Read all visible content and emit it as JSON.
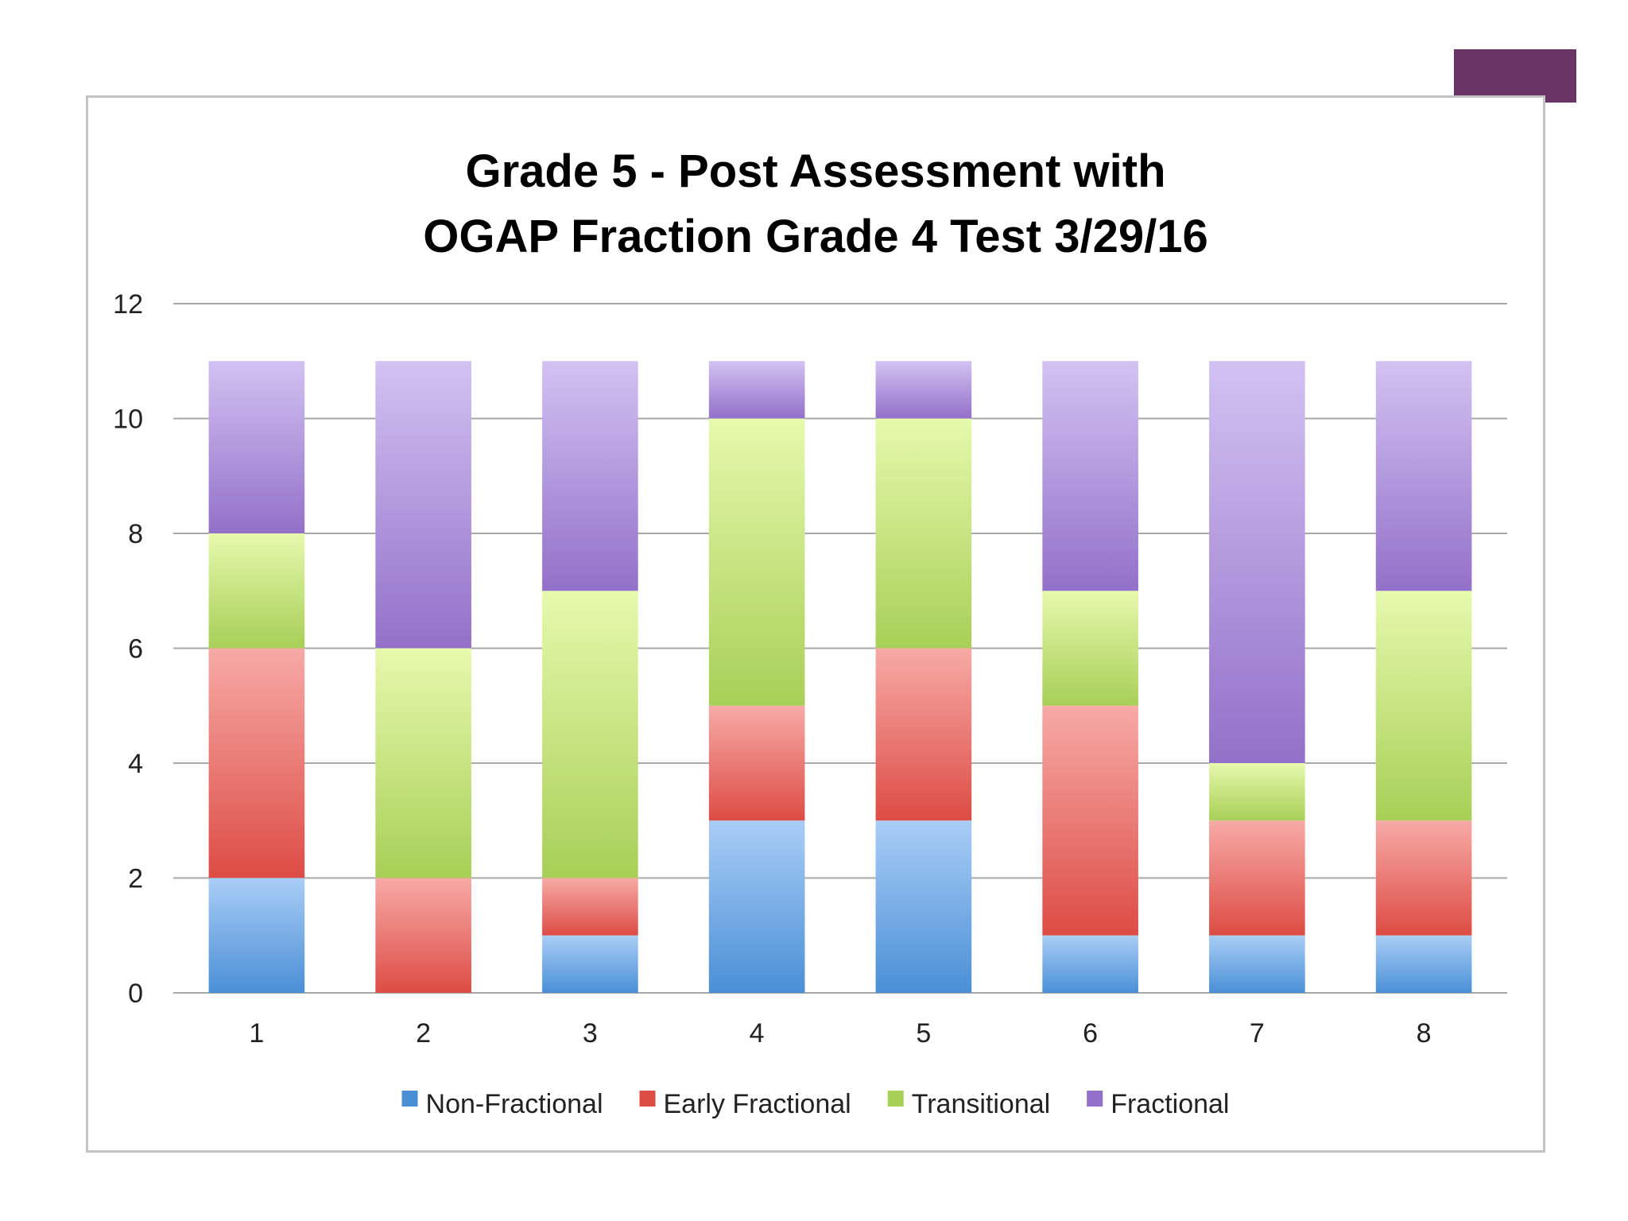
{
  "colors": {
    "accent_bar": "#6b3466",
    "frame": "#c4c4c4",
    "gridline": "#a8a8a8"
  },
  "chart_data": {
    "type": "bar",
    "stacked": true,
    "title": "Grade 5 - Post Assessment with\nOGAP Fraction Grade 4 Test 3/29/16",
    "xlabel": "",
    "ylabel": "",
    "categories": [
      "1",
      "2",
      "3",
      "4",
      "5",
      "6",
      "7",
      "8"
    ],
    "ylim": [
      0,
      12
    ],
    "yticks": [
      0,
      2,
      4,
      6,
      8,
      10,
      12
    ],
    "grid": true,
    "legend_position": "bottom",
    "series": [
      {
        "name": "Non-Fractional",
        "values": [
          2,
          0,
          1,
          3,
          3,
          1,
          1,
          1
        ],
        "color_top": "#a9cdf6",
        "color_bottom": "#4a8fd6"
      },
      {
        "name": "Early Fractional",
        "values": [
          4,
          2,
          1,
          2,
          3,
          4,
          2,
          2
        ],
        "color_top": "#f7aaa6",
        "color_bottom": "#dd4c45"
      },
      {
        "name": "Transitional",
        "values": [
          2,
          4,
          5,
          5,
          4,
          2,
          1,
          4
        ],
        "color_top": "#e6f9ad",
        "color_bottom": "#a8cf57"
      },
      {
        "name": "Fractional",
        "values": [
          3,
          5,
          4,
          1,
          1,
          4,
          7,
          4
        ],
        "color_top": "#d2c2f2",
        "color_bottom": "#9370c9"
      }
    ]
  }
}
